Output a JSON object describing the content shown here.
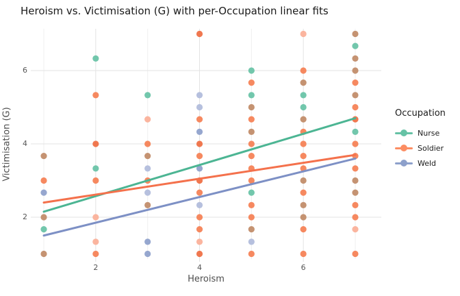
{
  "title": "Heroism vs. Victimisation (G) with per-Occupation linear fits",
  "axes": {
    "x_label": "Heroism",
    "y_label": "Victimisation (G)",
    "x_ticks": [
      {
        "value": 2,
        "label": "2"
      },
      {
        "value": 4,
        "label": "4"
      },
      {
        "value": 6,
        "label": "6"
      }
    ],
    "y_ticks": [
      {
        "value": 2,
        "label": "2"
      },
      {
        "value": 4,
        "label": "4"
      },
      {
        "value": 6,
        "label": "6"
      }
    ]
  },
  "legend": {
    "title": "Occupation",
    "items": [
      {
        "label": "Nurse",
        "color": "#66C2A5"
      },
      {
        "label": "Soldier",
        "color": "#FC8D62"
      },
      {
        "label": "Weld",
        "color": "#8DA0CB"
      }
    ]
  },
  "chart_data": {
    "type": "scatter",
    "title": "Heroism vs. Victimisation (G) with per-Occupation linear fits",
    "xlabel": "Heroism",
    "ylabel": "Victimisation (G)",
    "xlim": [
      0.75,
      7.55
    ],
    "ylim": [
      0.86,
      7.14
    ],
    "x_tick_values": [
      2,
      4,
      6
    ],
    "y_tick_values": [
      2,
      4,
      6
    ],
    "grid": {
      "h_major": [
        2,
        4,
        6
      ],
      "v_major": [
        2,
        4,
        6
      ],
      "v_minor": [
        1,
        3,
        5,
        7
      ],
      "color_major": "#e3e3e3",
      "color_minor": "#efefef"
    },
    "legend_position": "right",
    "palette": {
      "green": "#66C2A5",
      "orange": "#F57F52",
      "salmon": "#FBAF97",
      "redorange": "#EF6C41",
      "brown": "#C08A66",
      "blue": "#8DA0CB",
      "paleblue": "#B0BBDB"
    },
    "series": [
      {
        "name": "Nurse",
        "color": "#66C2A5",
        "line_color": "#4CB593",
        "fit_line": {
          "x": [
            1,
            7
          ],
          "y": [
            2.15,
            4.7
          ]
        }
      },
      {
        "name": "Soldier",
        "color": "#FC8D62",
        "line_color": "#F4714C",
        "fit_line": {
          "x": [
            1,
            7
          ],
          "y": [
            2.4,
            3.7
          ]
        }
      },
      {
        "name": "Weld",
        "color": "#8DA0CB",
        "line_color": "#7D90C5",
        "fit_line": {
          "x": [
            1,
            7
          ],
          "y": [
            1.5,
            3.6
          ]
        }
      }
    ],
    "points": [
      {
        "x": 1,
        "y": 3.67,
        "c": "brown"
      },
      {
        "x": 1,
        "y": 3.0,
        "c": "orange"
      },
      {
        "x": 1,
        "y": 2.67,
        "c": "blue"
      },
      {
        "x": 1,
        "y": 2.0,
        "c": "brown"
      },
      {
        "x": 1,
        "y": 1.67,
        "c": "green"
      },
      {
        "x": 1,
        "y": 1.0,
        "c": "brown"
      },
      {
        "x": 2,
        "y": 6.33,
        "c": "green"
      },
      {
        "x": 2,
        "y": 5.33,
        "c": "orange"
      },
      {
        "x": 2,
        "y": 4.0,
        "c": "redorange"
      },
      {
        "x": 2,
        "y": 3.33,
        "c": "green"
      },
      {
        "x": 2,
        "y": 3.0,
        "c": "orange"
      },
      {
        "x": 2,
        "y": 2.0,
        "c": "salmon"
      },
      {
        "x": 2,
        "y": 1.33,
        "c": "salmon"
      },
      {
        "x": 2,
        "y": 1.0,
        "c": "orange"
      },
      {
        "x": 3,
        "y": 5.33,
        "c": "green"
      },
      {
        "x": 3,
        "y": 4.67,
        "c": "salmon"
      },
      {
        "x": 3,
        "y": 4.0,
        "c": "orange"
      },
      {
        "x": 3,
        "y": 3.67,
        "c": "brown"
      },
      {
        "x": 3,
        "y": 3.33,
        "c": "paleblue"
      },
      {
        "x": 3,
        "y": 3.0,
        "c": "orange"
      },
      {
        "x": 3,
        "y": 2.67,
        "c": "paleblue"
      },
      {
        "x": 3,
        "y": 2.33,
        "c": "brown"
      },
      {
        "x": 3,
        "y": 1.33,
        "c": "blue"
      },
      {
        "x": 3,
        "y": 1.0,
        "c": "blue"
      },
      {
        "x": 4,
        "y": 7.0,
        "c": "redorange"
      },
      {
        "x": 4,
        "y": 5.33,
        "c": "paleblue"
      },
      {
        "x": 4,
        "y": 5.0,
        "c": "paleblue"
      },
      {
        "x": 4,
        "y": 4.67,
        "c": "orange"
      },
      {
        "x": 4,
        "y": 4.33,
        "c": "blue"
      },
      {
        "x": 4,
        "y": 4.0,
        "c": "redorange"
      },
      {
        "x": 4,
        "y": 3.67,
        "c": "orange"
      },
      {
        "x": 4,
        "y": 3.33,
        "c": "blue"
      },
      {
        "x": 4,
        "y": 3.0,
        "c": "redorange"
      },
      {
        "x": 4,
        "y": 2.67,
        "c": "orange"
      },
      {
        "x": 4,
        "y": 2.33,
        "c": "paleblue"
      },
      {
        "x": 4,
        "y": 2.0,
        "c": "orange"
      },
      {
        "x": 4,
        "y": 1.67,
        "c": "orange"
      },
      {
        "x": 4,
        "y": 1.33,
        "c": "salmon"
      },
      {
        "x": 4,
        "y": 1.0,
        "c": "redorange"
      },
      {
        "x": 5,
        "y": 6.0,
        "c": "green"
      },
      {
        "x": 5,
        "y": 5.67,
        "c": "orange"
      },
      {
        "x": 5,
        "y": 5.33,
        "c": "green"
      },
      {
        "x": 5,
        "y": 5.0,
        "c": "brown"
      },
      {
        "x": 5,
        "y": 4.67,
        "c": "orange"
      },
      {
        "x": 5,
        "y": 4.33,
        "c": "brown"
      },
      {
        "x": 5,
        "y": 4.0,
        "c": "orange"
      },
      {
        "x": 5,
        "y": 3.67,
        "c": "orange"
      },
      {
        "x": 5,
        "y": 3.33,
        "c": "orange"
      },
      {
        "x": 5,
        "y": 3.0,
        "c": "orange"
      },
      {
        "x": 5,
        "y": 2.67,
        "c": "green"
      },
      {
        "x": 5,
        "y": 2.33,
        "c": "orange"
      },
      {
        "x": 5,
        "y": 2.0,
        "c": "orange"
      },
      {
        "x": 5,
        "y": 1.67,
        "c": "brown"
      },
      {
        "x": 5,
        "y": 1.33,
        "c": "paleblue"
      },
      {
        "x": 5,
        "y": 1.0,
        "c": "orange"
      },
      {
        "x": 6,
        "y": 7.0,
        "c": "salmon"
      },
      {
        "x": 6,
        "y": 6.0,
        "c": "orange"
      },
      {
        "x": 6,
        "y": 5.67,
        "c": "brown"
      },
      {
        "x": 6,
        "y": 5.33,
        "c": "green"
      },
      {
        "x": 6,
        "y": 5.0,
        "c": "green"
      },
      {
        "x": 6,
        "y": 4.67,
        "c": "brown"
      },
      {
        "x": 6,
        "y": 4.33,
        "c": "orange"
      },
      {
        "x": 6,
        "y": 4.0,
        "c": "orange"
      },
      {
        "x": 6,
        "y": 3.67,
        "c": "orange"
      },
      {
        "x": 6,
        "y": 3.33,
        "c": "orange"
      },
      {
        "x": 6,
        "y": 3.0,
        "c": "brown"
      },
      {
        "x": 6,
        "y": 2.67,
        "c": "orange"
      },
      {
        "x": 6,
        "y": 2.33,
        "c": "brown"
      },
      {
        "x": 6,
        "y": 2.0,
        "c": "brown"
      },
      {
        "x": 6,
        "y": 1.67,
        "c": "orange"
      },
      {
        "x": 6,
        "y": 1.0,
        "c": "orange"
      },
      {
        "x": 7,
        "y": 7.0,
        "c": "brown"
      },
      {
        "x": 7,
        "y": 6.67,
        "c": "green"
      },
      {
        "x": 7,
        "y": 6.33,
        "c": "brown"
      },
      {
        "x": 7,
        "y": 6.0,
        "c": "brown"
      },
      {
        "x": 7,
        "y": 5.67,
        "c": "orange"
      },
      {
        "x": 7,
        "y": 5.33,
        "c": "brown"
      },
      {
        "x": 7,
        "y": 5.0,
        "c": "orange"
      },
      {
        "x": 7,
        "y": 4.67,
        "c": "redorange"
      },
      {
        "x": 7,
        "y": 4.33,
        "c": "green"
      },
      {
        "x": 7,
        "y": 4.0,
        "c": "orange"
      },
      {
        "x": 7,
        "y": 3.67,
        "c": "orange"
      },
      {
        "x": 7,
        "y": 3.33,
        "c": "orange"
      },
      {
        "x": 7,
        "y": 3.0,
        "c": "brown"
      },
      {
        "x": 7,
        "y": 2.67,
        "c": "brown"
      },
      {
        "x": 7,
        "y": 2.33,
        "c": "orange"
      },
      {
        "x": 7,
        "y": 2.0,
        "c": "orange"
      },
      {
        "x": 7,
        "y": 1.67,
        "c": "salmon"
      },
      {
        "x": 7,
        "y": 1.0,
        "c": "orange"
      }
    ]
  }
}
